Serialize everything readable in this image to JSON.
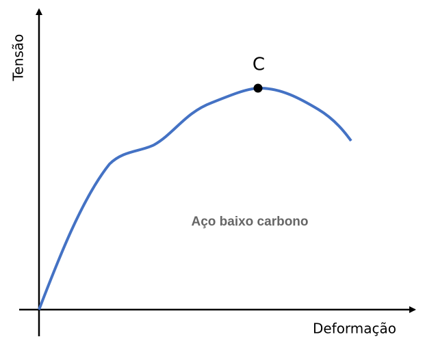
{
  "axes": {
    "y_label": "Tensão",
    "x_label": "Deformação"
  },
  "point": {
    "label": "C"
  },
  "annotation": "Aço baixo carbono"
}
